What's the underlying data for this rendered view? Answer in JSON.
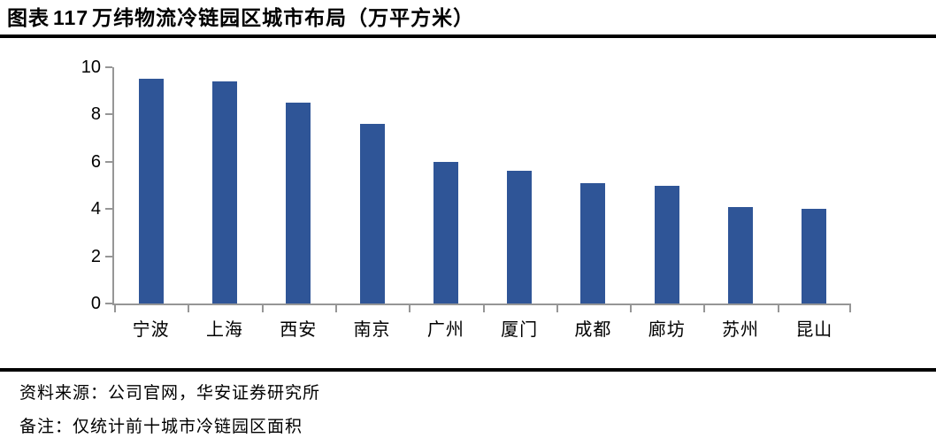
{
  "title": {
    "prefix": "图表",
    "number": "117",
    "text": "万纬物流冷链园区城市布局（万平方米）"
  },
  "chart_data": {
    "type": "bar",
    "title": "万纬物流冷链园区城市布局（万平方米）",
    "categories": [
      "宁波",
      "上海",
      "西安",
      "南京",
      "广州",
      "厦门",
      "成都",
      "廊坊",
      "苏州",
      "昆山"
    ],
    "values": [
      9.5,
      9.4,
      8.5,
      7.6,
      6.0,
      5.6,
      5.1,
      5.0,
      4.1,
      4.0
    ],
    "xlabel": "",
    "ylabel": "",
    "ylim": [
      0,
      10
    ],
    "yticks": [
      0,
      2,
      4,
      6,
      8,
      10
    ],
    "grid": false,
    "legend": false,
    "bar_color": "#2F5597",
    "axis_color": "#969696"
  },
  "footer": {
    "source": "资料来源：公司官网，华安证券研究所",
    "note": "备注：仅统计前十城市冷链园区面积"
  }
}
